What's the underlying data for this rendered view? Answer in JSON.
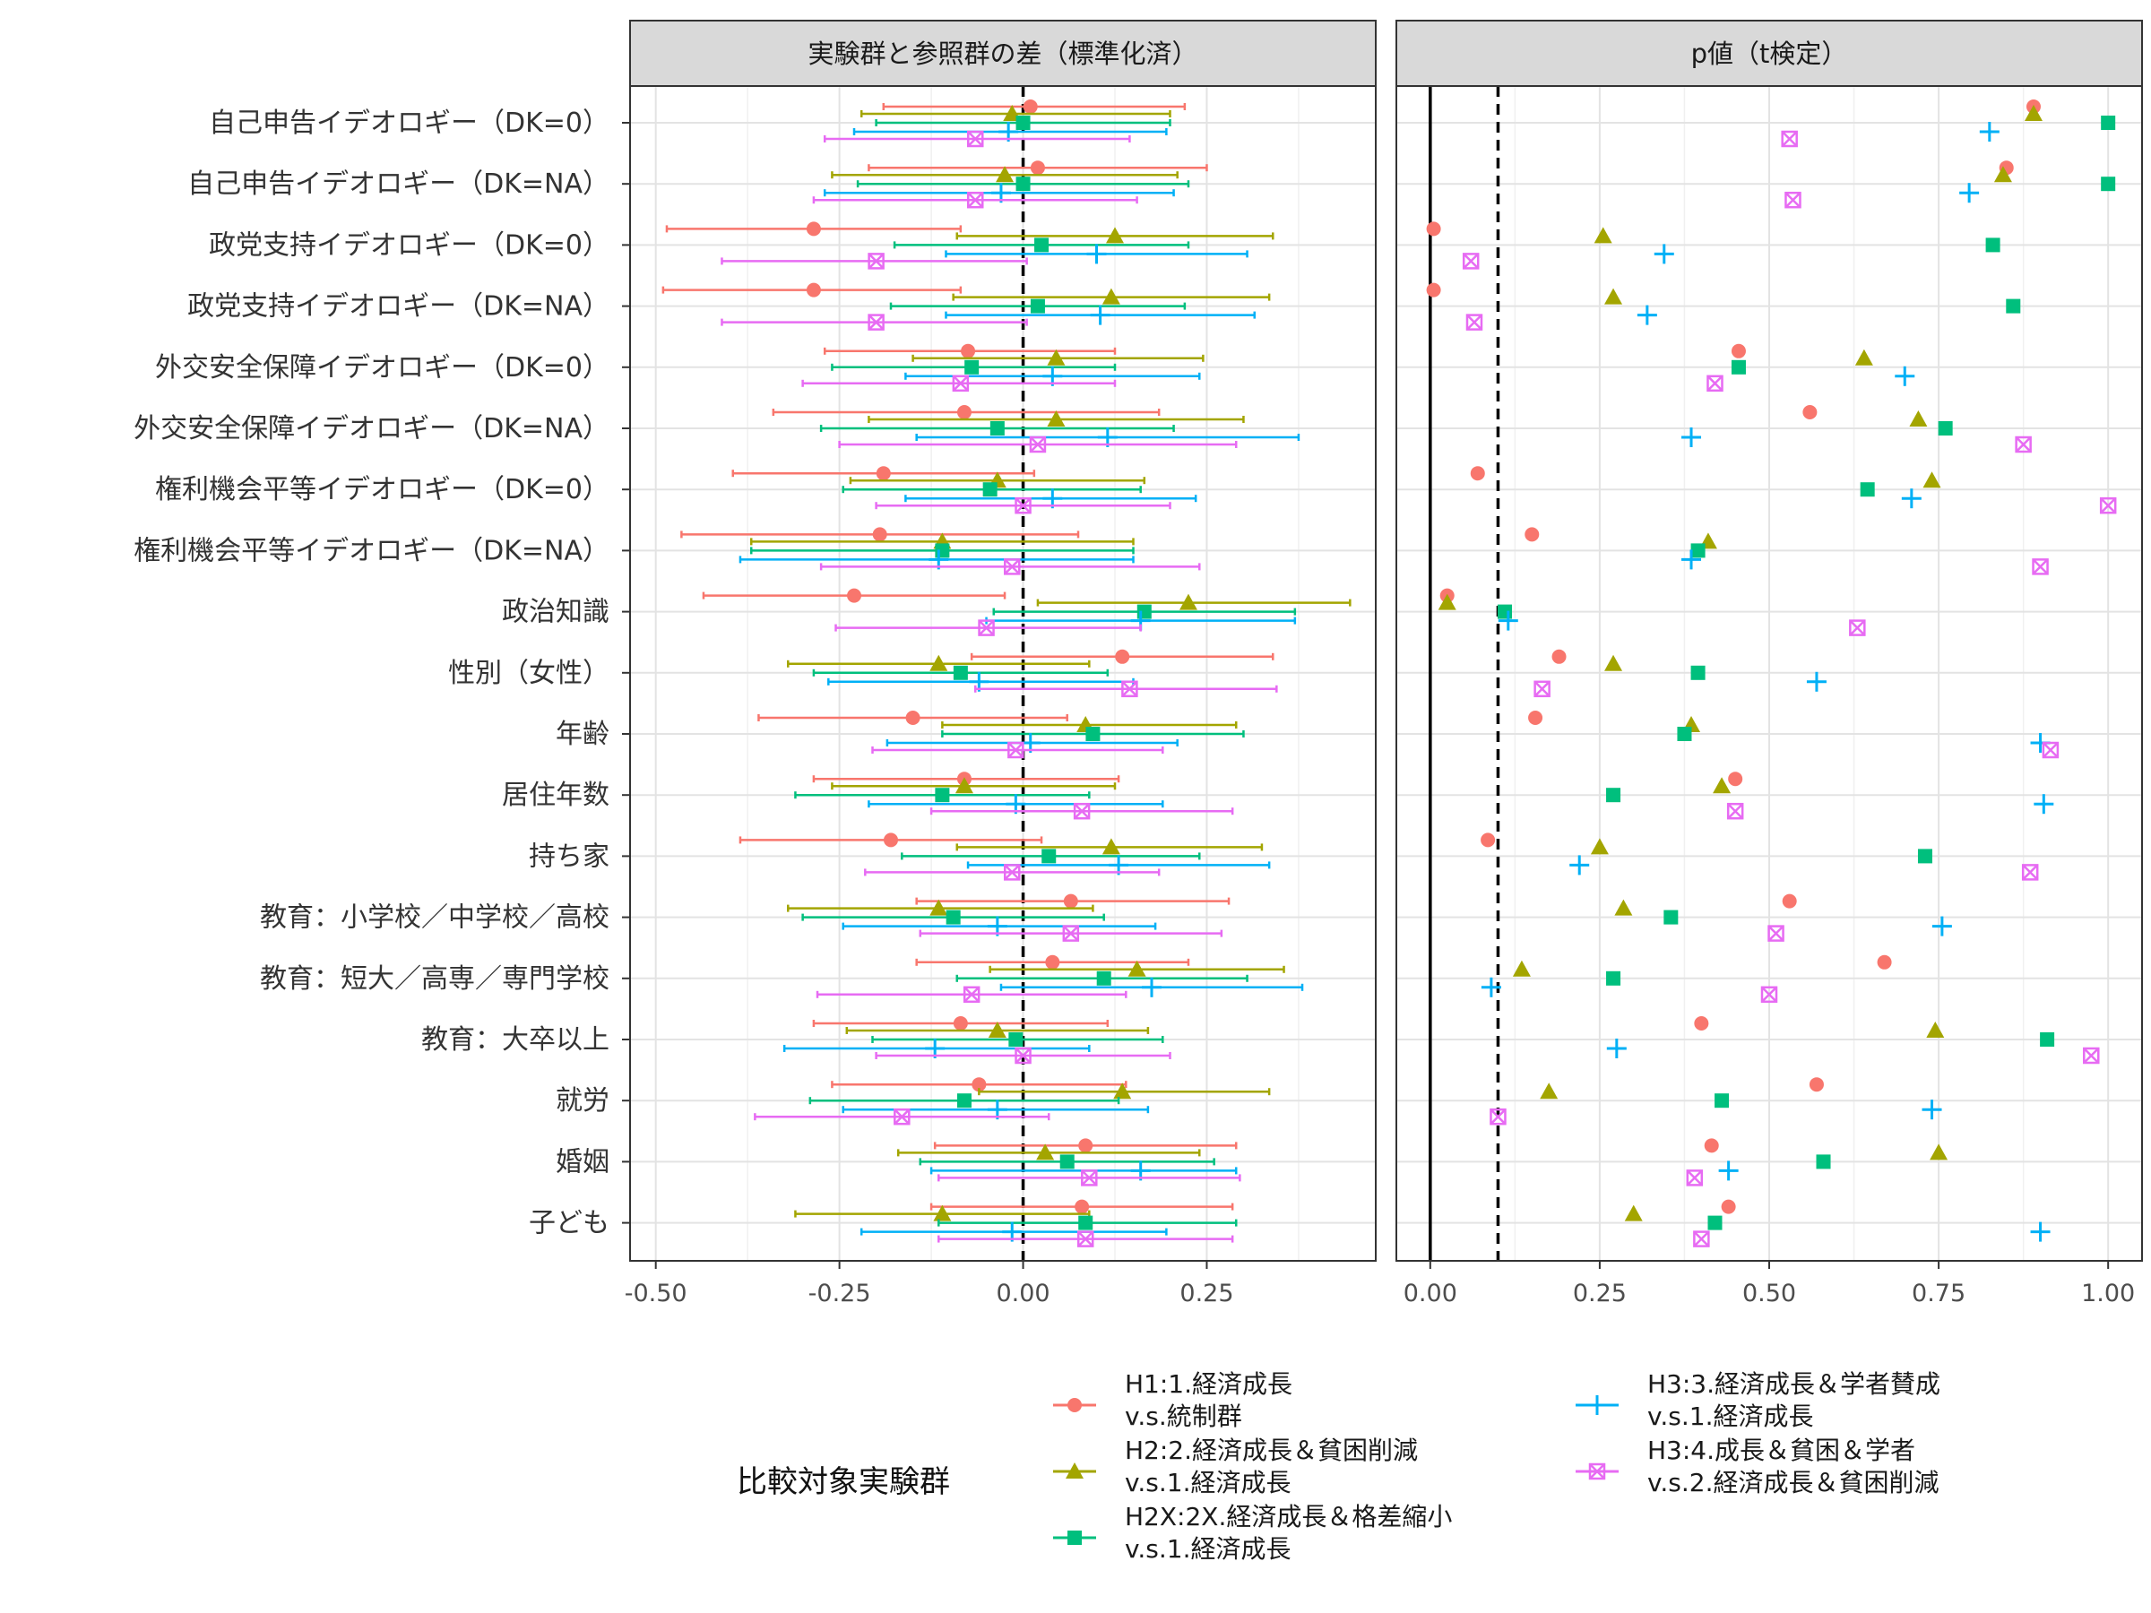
{
  "chart_data": {
    "type": "dot-and-whisker",
    "panels": [
      {
        "title": "実験群と参照群の差（標準化済）",
        "xlim": [
          -0.535,
          0.48
        ],
        "xticks": [
          -0.5,
          -0.25,
          0.0,
          0.25
        ],
        "xtick_labels": [
          "-0.50",
          "-0.25",
          "0.00",
          "0.25"
        ],
        "ref_line_dashed": 0.0
      },
      {
        "title": "p値（t検定）",
        "xlim": [
          -0.05,
          1.05
        ],
        "xticks": [
          0.0,
          0.25,
          0.5,
          0.75,
          1.0
        ],
        "xtick_labels": [
          "0.00",
          "0.25",
          "0.50",
          "0.75",
          "1.00"
        ],
        "ref_line_solid": 0.0,
        "ref_line_dashed": 0.1
      }
    ],
    "categories": [
      "自己申告イデオロギー（DK=0）",
      "自己申告イデオロギー（DK=NA）",
      "政党支持イデオロギー（DK=0）",
      "政党支持イデオロギー（DK=NA）",
      "外交安全保障イデオロギー（DK=0）",
      "外交安全保障イデオロギー（DK=NA）",
      "権利機会平等イデオロギー（DK=0）",
      "権利機会平等イデオロギー（DK=NA）",
      "政治知識",
      "性別（女性）",
      "年齢",
      "居住年数",
      "持ち家",
      "教育：小学校／中学校／高校",
      "教育：短大／高専／専門学校",
      "教育：大卒以上",
      "就労",
      "婚姻",
      "子ども"
    ],
    "legend": {
      "title": "比較対象実験群",
      "position": "bottom"
    },
    "series": [
      {
        "name": "H1:1.経済成長\nv.s.統制群",
        "color": "#F8766D",
        "marker": "circle",
        "diff": [
          0.01,
          0.02,
          -0.285,
          -0.285,
          -0.075,
          -0.08,
          -0.19,
          -0.195,
          -0.23,
          0.135,
          -0.15,
          -0.08,
          -0.18,
          0.065,
          0.04,
          -0.085,
          -0.06,
          0.085,
          0.08
        ],
        "ci_low": [
          -0.19,
          -0.21,
          -0.485,
          -0.49,
          -0.27,
          -0.34,
          -0.395,
          -0.465,
          -0.435,
          -0.07,
          -0.36,
          -0.285,
          -0.385,
          -0.145,
          -0.145,
          -0.285,
          -0.26,
          -0.12,
          -0.125
        ],
        "ci_high": [
          0.22,
          0.25,
          -0.085,
          -0.085,
          0.125,
          0.185,
          0.015,
          0.075,
          -0.025,
          0.34,
          0.06,
          0.13,
          0.025,
          0.28,
          0.225,
          0.115,
          0.14,
          0.29,
          0.285
        ],
        "p": [
          0.89,
          0.85,
          0.005,
          0.005,
          0.455,
          0.56,
          0.07,
          0.15,
          0.025,
          0.19,
          0.155,
          0.45,
          0.085,
          0.53,
          0.67,
          0.4,
          0.57,
          0.415,
          0.44
        ]
      },
      {
        "name": "H2:2.経済成長＆貧困削減\nv.s.1.経済成長",
        "color": "#A3A500",
        "marker": "triangle",
        "diff": [
          -0.015,
          -0.025,
          0.125,
          0.12,
          0.045,
          0.045,
          -0.035,
          -0.11,
          0.225,
          -0.115,
          0.085,
          -0.08,
          0.12,
          -0.115,
          0.155,
          -0.035,
          0.135,
          0.03,
          -0.11
        ],
        "ci_low": [
          -0.22,
          -0.26,
          -0.09,
          -0.095,
          -0.15,
          -0.21,
          -0.235,
          -0.37,
          0.02,
          -0.32,
          -0.11,
          -0.26,
          -0.09,
          -0.32,
          -0.045,
          -0.24,
          -0.06,
          -0.17,
          -0.31
        ],
        "ci_high": [
          0.2,
          0.21,
          0.34,
          0.335,
          0.245,
          0.3,
          0.165,
          0.15,
          0.445,
          0.09,
          0.29,
          0.125,
          0.325,
          0.095,
          0.355,
          0.17,
          0.335,
          0.24,
          0.09
        ],
        "p": [
          0.89,
          0.845,
          0.255,
          0.27,
          0.64,
          0.72,
          0.74,
          0.41,
          0.025,
          0.27,
          0.385,
          0.43,
          0.25,
          0.285,
          0.135,
          0.745,
          0.175,
          0.75,
          0.3
        ]
      },
      {
        "name": "H2X:2X.経済成長＆格差縮小\nv.s.1.経済成長",
        "color": "#00BF7D",
        "marker": "square",
        "diff": [
          0.0,
          0.0,
          0.025,
          0.02,
          -0.07,
          -0.035,
          -0.045,
          -0.11,
          0.165,
          -0.085,
          0.095,
          -0.11,
          0.035,
          -0.095,
          0.11,
          -0.01,
          -0.08,
          0.06,
          0.085
        ],
        "ci_low": [
          -0.2,
          -0.225,
          -0.175,
          -0.18,
          -0.26,
          -0.275,
          -0.245,
          -0.37,
          -0.04,
          -0.285,
          -0.11,
          -0.31,
          -0.165,
          -0.3,
          -0.09,
          -0.205,
          -0.29,
          -0.14,
          -0.115
        ],
        "ci_high": [
          0.2,
          0.225,
          0.225,
          0.22,
          0.125,
          0.205,
          0.16,
          0.15,
          0.37,
          0.115,
          0.3,
          0.09,
          0.24,
          0.11,
          0.305,
          0.19,
          0.13,
          0.26,
          0.29
        ],
        "p": [
          1.0,
          1.0,
          0.83,
          0.86,
          0.455,
          0.76,
          0.645,
          0.395,
          0.11,
          0.395,
          0.375,
          0.27,
          0.73,
          0.355,
          0.27,
          0.91,
          0.43,
          0.58,
          0.42
        ]
      },
      {
        "name": "H3:3.経済成長＆学者賛成\nv.s.1.経済成長",
        "color": "#00B0F6",
        "marker": "plus",
        "diff": [
          -0.02,
          -0.03,
          0.1,
          0.105,
          0.04,
          0.115,
          0.04,
          -0.115,
          0.16,
          -0.06,
          0.01,
          -0.01,
          0.13,
          -0.035,
          0.175,
          -0.12,
          -0.035,
          0.16,
          -0.015
        ],
        "ci_low": [
          -0.23,
          -0.27,
          -0.105,
          -0.105,
          -0.16,
          -0.145,
          -0.16,
          -0.385,
          -0.05,
          -0.265,
          -0.185,
          -0.21,
          -0.075,
          -0.245,
          -0.03,
          -0.325,
          -0.245,
          -0.125,
          -0.22
        ],
        "ci_high": [
          0.195,
          0.205,
          0.305,
          0.315,
          0.24,
          0.375,
          0.235,
          0.15,
          0.37,
          0.15,
          0.21,
          0.19,
          0.335,
          0.18,
          0.38,
          0.09,
          0.17,
          0.29,
          0.195
        ],
        "p": [
          0.825,
          0.795,
          0.345,
          0.32,
          0.7,
          0.385,
          0.71,
          0.385,
          0.115,
          0.57,
          0.9,
          0.905,
          0.22,
          0.755,
          0.09,
          0.275,
          0.74,
          0.44,
          0.9
        ]
      },
      {
        "name": "H3:4.成長＆貧困＆学者\nv.s.2.経済成長＆貧困削減",
        "color": "#E76BF3",
        "marker": "boxed-x",
        "diff": [
          -0.065,
          -0.065,
          -0.2,
          -0.2,
          -0.085,
          0.02,
          0.0,
          -0.015,
          -0.05,
          0.145,
          -0.01,
          0.08,
          -0.015,
          0.065,
          -0.07,
          0.0,
          -0.165,
          0.09,
          0.085
        ],
        "ci_low": [
          -0.27,
          -0.285,
          -0.41,
          -0.41,
          -0.3,
          -0.25,
          -0.2,
          -0.275,
          -0.255,
          -0.065,
          -0.205,
          -0.125,
          -0.215,
          -0.14,
          -0.28,
          -0.2,
          -0.365,
          -0.115,
          -0.115
        ],
        "ci_high": [
          0.145,
          0.155,
          0.005,
          0.005,
          0.125,
          0.29,
          0.2,
          0.24,
          0.16,
          0.345,
          0.19,
          0.285,
          0.185,
          0.27,
          0.14,
          0.2,
          0.035,
          0.295,
          0.285
        ],
        "p": [
          0.53,
          0.535,
          0.06,
          0.065,
          0.42,
          0.875,
          1.0,
          0.9,
          0.63,
          0.165,
          0.915,
          0.45,
          0.885,
          0.51,
          0.5,
          0.975,
          0.1,
          0.39,
          0.4
        ]
      }
    ]
  }
}
